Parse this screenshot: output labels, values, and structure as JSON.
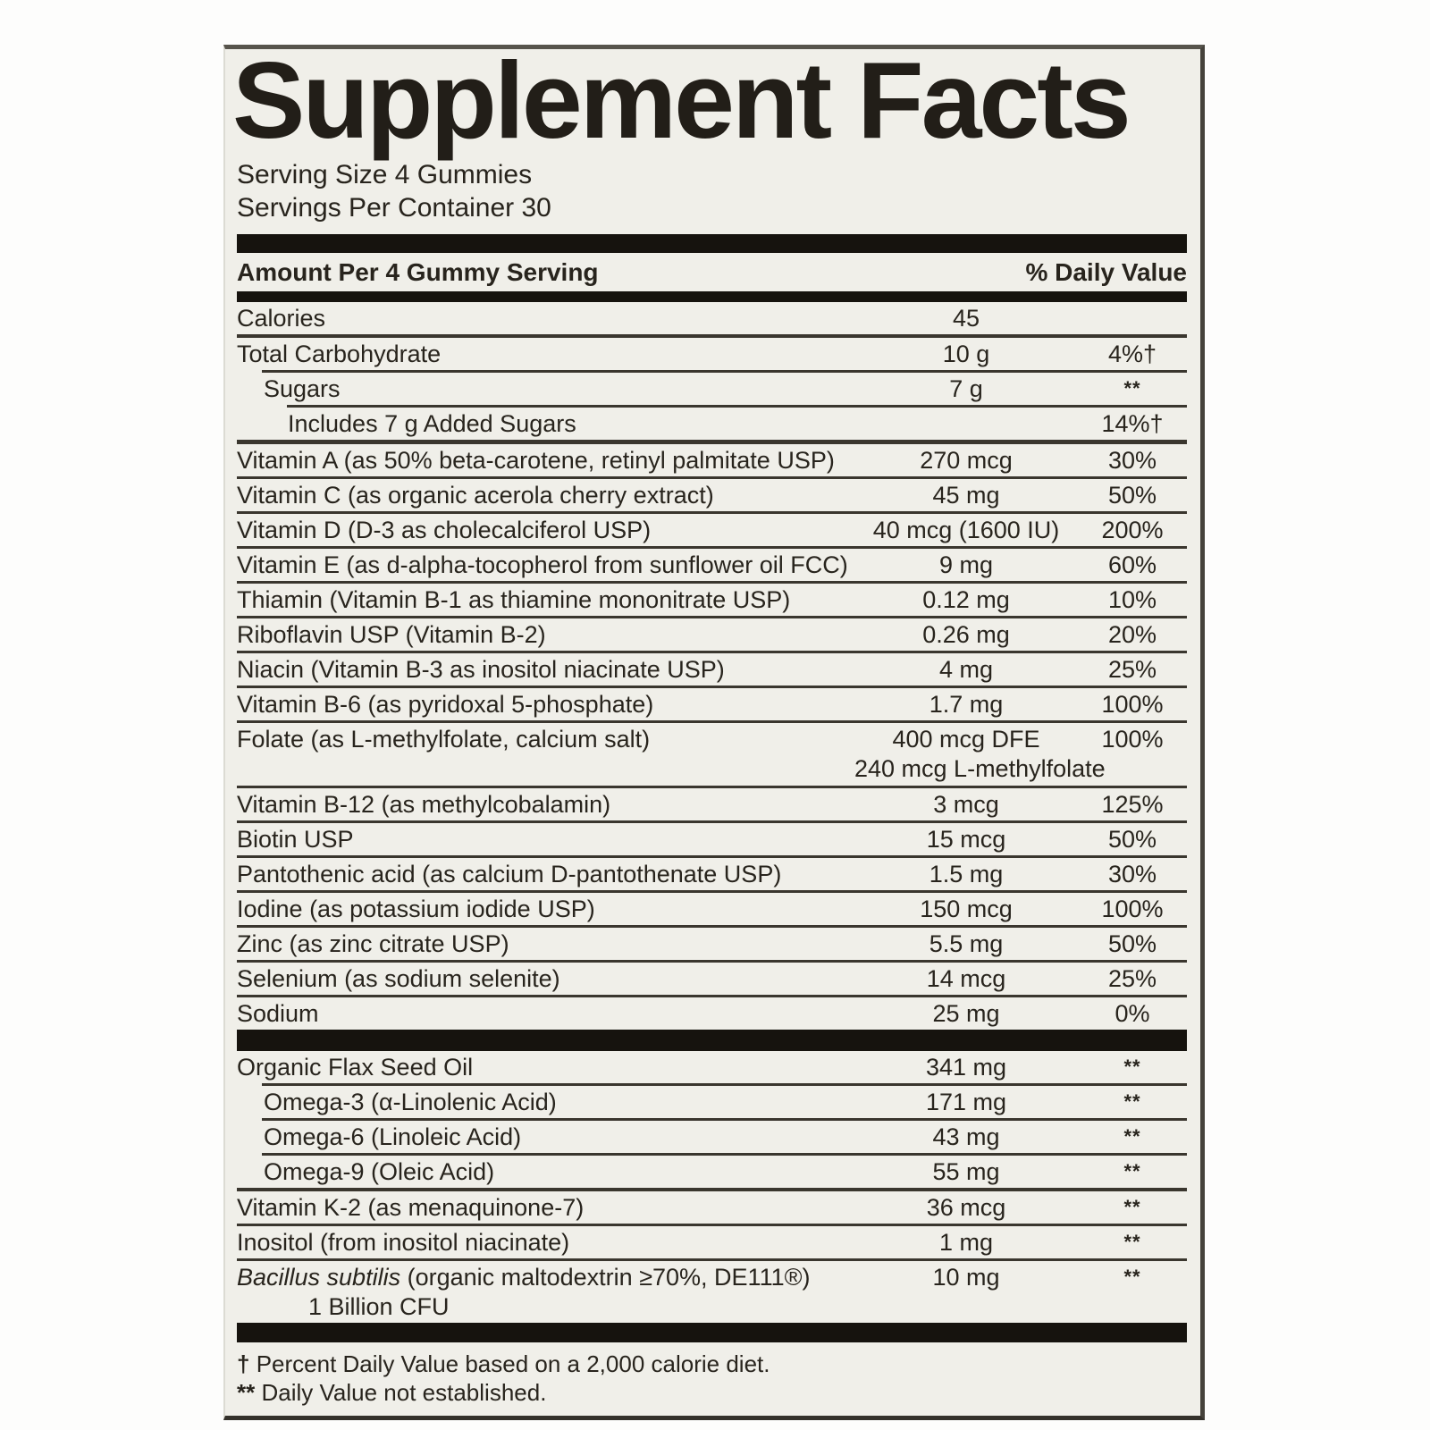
{
  "title": "Supplement Facts",
  "serving": {
    "size": "Serving Size 4 Gummies",
    "per_container": "Servings Per Container 30"
  },
  "table": {
    "header": {
      "left": "Amount Per 4 Gummy Serving",
      "right": "% Daily Value"
    },
    "sections": [
      {
        "rows": [
          {
            "name": "Calories",
            "amount": "45",
            "dv": "",
            "indent": 0,
            "sep": "none"
          },
          {
            "name": "Total Carbohydrate",
            "amount": "10 g",
            "dv": "4%†",
            "indent": 0,
            "sep": "med"
          },
          {
            "name": "Sugars",
            "amount": "7 g",
            "dv": "**",
            "indent": 1,
            "sep": "ind1"
          },
          {
            "name": "Includes 7 g Added Sugars",
            "amount": "",
            "dv": "14%†",
            "indent": 2,
            "sep": "ind2"
          },
          {
            "name": "Vitamin A (as 50% beta-carotene, retinyl palmitate USP)",
            "amount": "270 mcg",
            "dv": "30%",
            "indent": 0,
            "sep": "thick"
          },
          {
            "name": "Vitamin C (as organic acerola cherry extract)",
            "amount": "45 mg",
            "dv": "50%",
            "indent": 0,
            "sep": "full"
          },
          {
            "name": "Vitamin D (D-3 as cholecalciferol USP)",
            "amount": "40 mcg (1600 IU)",
            "dv": "200%",
            "indent": 0,
            "sep": "full"
          },
          {
            "name": "Vitamin E (as d-alpha-tocopherol from sunflower oil FCC)",
            "amount": "9 mg",
            "dv": "60%",
            "indent": 0,
            "sep": "full"
          },
          {
            "name": "Thiamin (Vitamin B-1 as thiamine mononitrate USP)",
            "amount": "0.12 mg",
            "dv": "10%",
            "indent": 0,
            "sep": "full"
          },
          {
            "name": "Riboflavin USP (Vitamin B-2)",
            "amount": "0.26 mg",
            "dv": "20%",
            "indent": 0,
            "sep": "full"
          },
          {
            "name": "Niacin (Vitamin B-3 as inositol niacinate USP)",
            "amount": "4 mg",
            "dv": "25%",
            "indent": 0,
            "sep": "full"
          },
          {
            "name": "Vitamin B-6 (as pyridoxal 5-phosphate)",
            "amount": "1.7 mg",
            "dv": "100%",
            "indent": 0,
            "sep": "full"
          },
          {
            "name": "Folate (as L-methylfolate, calcium salt)",
            "amount": "400 mcg DFE",
            "amount2": "240 mcg L-methylfolate",
            "dv": "100%",
            "indent": 0,
            "sep": "full"
          },
          {
            "name": "Vitamin B-12 (as methylcobalamin)",
            "amount": "3 mcg",
            "dv": "125%",
            "indent": 0,
            "sep": "full"
          },
          {
            "name": "Biotin USP",
            "amount": "15 mcg",
            "dv": "50%",
            "indent": 0,
            "sep": "full"
          },
          {
            "name": "Pantothenic acid (as calcium D-pantothenate USP)",
            "amount": "1.5 mg",
            "dv": "30%",
            "indent": 0,
            "sep": "full"
          },
          {
            "name": "Iodine (as potassium iodide USP)",
            "amount": "150 mcg",
            "dv": "100%",
            "indent": 0,
            "sep": "full"
          },
          {
            "name": "Zinc (as zinc citrate USP)",
            "amount": "5.5 mg",
            "dv": "50%",
            "indent": 0,
            "sep": "full"
          },
          {
            "name": "Selenium (as sodium selenite)",
            "amount": "14 mcg",
            "dv": "25%",
            "indent": 0,
            "sep": "full"
          },
          {
            "name": "Sodium",
            "amount": "25 mg",
            "dv": "0%",
            "indent": 0,
            "sep": "full"
          }
        ]
      },
      {
        "rows": [
          {
            "name": "Organic Flax Seed Oil",
            "amount": "341 mg",
            "dv": "**",
            "indent": 0,
            "sep": "none"
          },
          {
            "name": "Omega-3 (α-Linolenic Acid)",
            "amount": "171 mg",
            "dv": "**",
            "indent": 1,
            "sep": "ind1"
          },
          {
            "name": "Omega-6 (Linoleic Acid)",
            "amount": "43 mg",
            "dv": "**",
            "indent": 1,
            "sep": "ind1"
          },
          {
            "name": "Omega-9 (Oleic Acid)",
            "amount": "55 mg",
            "dv": "**",
            "indent": 1,
            "sep": "ind1"
          },
          {
            "name": "Vitamin K-2 (as menaquinone-7)",
            "amount": "36 mcg",
            "dv": "**",
            "indent": 0,
            "sep": "med"
          },
          {
            "name": "Inositol (from inositol niacinate)",
            "amount": "1 mg",
            "dv": "**",
            "indent": 0,
            "sep": "full"
          },
          {
            "name_italic": "Bacillus subtilis",
            "name": " (organic maltodextrin ≥70%, DE111®)",
            "name2": "1 Billion CFU",
            "amount": "10 mg",
            "dv": "**",
            "indent": 0,
            "sep": "full"
          }
        ]
      }
    ]
  },
  "footnotes": [
    {
      "sym": "†",
      "text": "Percent Daily Value based on a 2,000 calorie diet."
    },
    {
      "sym": "**",
      "text": "Daily Value not established."
    }
  ],
  "colors": {
    "label_background": "#f0efe9",
    "ink": "#28241d",
    "bar": "#16130e"
  }
}
